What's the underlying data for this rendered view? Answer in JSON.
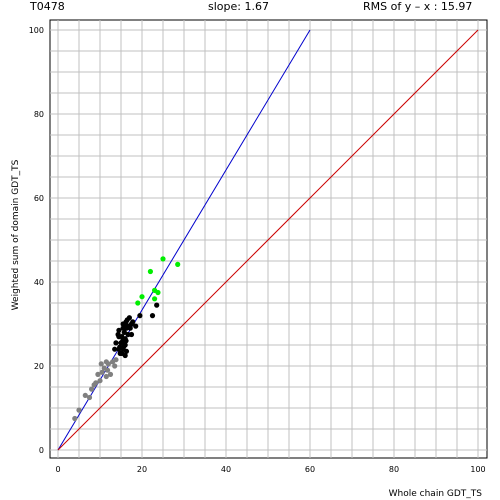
{
  "header": {
    "target": "T0478",
    "slope": "slope: 1.67",
    "rms": "RMS of  y – x : 15.97"
  },
  "chart_data": {
    "type": "scatter",
    "xlabel": "Whole chain GDT_TS",
    "ylabel": "Weighted sum of domain GDT_TS",
    "xlim": [
      0,
      100
    ],
    "ylim": [
      0,
      100
    ],
    "xticks": [
      0,
      20,
      40,
      60,
      80,
      100
    ],
    "yticks": [
      0,
      20,
      40,
      60,
      80,
      100
    ],
    "grid": true,
    "lines": [
      {
        "x": [
          0,
          60
        ],
        "y": [
          0,
          100
        ],
        "color": "#0000cc"
      },
      {
        "x": [
          0,
          100
        ],
        "y": [
          0,
          100
        ],
        "color": "#cc0000"
      }
    ],
    "series": [
      {
        "color": "#00ee00",
        "x": [
          22.0,
          25.0,
          28.5,
          23.0,
          23.8,
          20.0,
          23.0,
          19.0
        ],
        "y": [
          42.5,
          45.5,
          44.2,
          38.0,
          37.5,
          36.5,
          36.0,
          35.0
        ]
      },
      {
        "color": "#000000",
        "x": [
          23.5,
          19.5,
          22.5,
          17.0,
          16.5,
          16.2,
          17.8,
          15.5,
          16.0,
          17.5,
          16.8,
          18.5,
          15.5,
          16.3,
          17.2,
          14.5,
          15.8,
          14.3,
          16.7,
          17.5,
          15.2,
          14.5,
          16.0,
          15.4,
          16.2,
          13.8,
          15.0,
          16.0,
          14.7,
          15.6,
          13.5,
          14.5,
          15.5,
          16.3,
          14.8,
          15.2,
          16.0
        ],
        "y": [
          34.5,
          32.0,
          32.0,
          31.5,
          31.0,
          30.5,
          30.5,
          30.0,
          30.0,
          30.0,
          29.5,
          29.5,
          29.0,
          29.0,
          29.0,
          28.5,
          28.0,
          27.5,
          27.5,
          27.5,
          27.0,
          27.0,
          26.5,
          26.0,
          26.0,
          25.5,
          25.5,
          25.0,
          24.5,
          24.5,
          24.0,
          24.0,
          24.0,
          23.5,
          23.0,
          23.0,
          22.5
        ]
      },
      {
        "color": "#808080",
        "x": [
          13.8,
          13.0,
          11.5,
          12.0,
          10.3,
          11.0,
          13.5,
          11.8,
          10.5,
          12.5,
          9.5,
          11.5,
          10.0,
          9.0,
          8.6,
          8.0,
          6.5,
          7.5,
          5.0,
          4.0
        ],
        "y": [
          21.5,
          21.0,
          21.0,
          20.5,
          20.5,
          19.5,
          20.0,
          19.0,
          18.5,
          18.0,
          18.0,
          17.5,
          16.5,
          16.0,
          15.5,
          14.5,
          13.0,
          12.5,
          9.5,
          7.5
        ]
      }
    ]
  }
}
